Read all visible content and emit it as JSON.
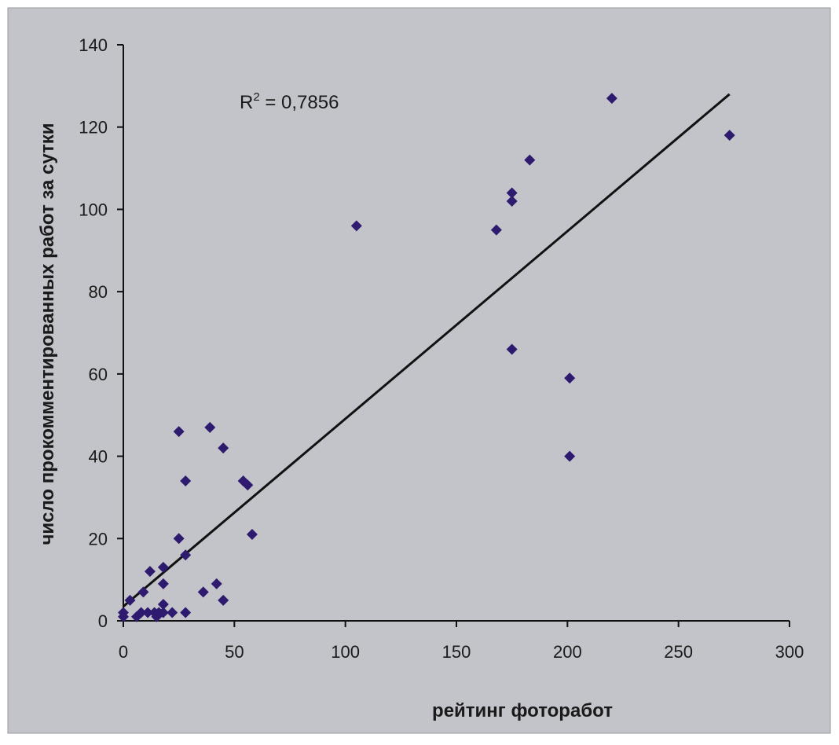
{
  "chart_data": {
    "type": "scatter",
    "xlabel": "рейтинг фоторабот",
    "ylabel": "число прокомментированных работ за сутки",
    "xlim": [
      0,
      300
    ],
    "ylim": [
      0,
      140
    ],
    "xticks": [
      0,
      50,
      100,
      150,
      200,
      250,
      300
    ],
    "yticks": [
      0,
      20,
      40,
      60,
      80,
      100,
      120,
      140
    ],
    "grid": false,
    "annotation": {
      "r2_label": "R",
      "r2_sup": "2",
      "r2_value": " = 0,7856"
    },
    "trendline": {
      "x": [
        0,
        273
      ],
      "y": [
        3.5,
        128
      ]
    },
    "marker_color": "#2e1a6e",
    "background_color": "#c3c4c9",
    "points": [
      [
        0,
        1
      ],
      [
        0,
        2
      ],
      [
        3,
        5
      ],
      [
        6,
        1
      ],
      [
        8,
        2
      ],
      [
        9,
        7
      ],
      [
        11,
        2
      ],
      [
        12,
        12
      ],
      [
        14,
        2
      ],
      [
        15,
        1
      ],
      [
        16,
        2
      ],
      [
        18,
        13
      ],
      [
        18,
        9
      ],
      [
        18,
        4
      ],
      [
        18,
        2
      ],
      [
        22,
        2
      ],
      [
        25,
        20
      ],
      [
        25,
        46
      ],
      [
        28,
        34
      ],
      [
        28,
        16
      ],
      [
        28,
        2
      ],
      [
        36,
        7
      ],
      [
        39,
        47
      ],
      [
        42,
        9
      ],
      [
        45,
        42
      ],
      [
        45,
        5
      ],
      [
        54,
        34
      ],
      [
        56,
        33
      ],
      [
        58,
        21
      ],
      [
        105,
        96
      ],
      [
        168,
        95
      ],
      [
        175,
        104
      ],
      [
        175,
        102
      ],
      [
        175,
        66
      ],
      [
        183,
        112
      ],
      [
        201,
        59
      ],
      [
        201,
        40
      ],
      [
        220,
        127
      ],
      [
        273,
        118
      ]
    ]
  }
}
